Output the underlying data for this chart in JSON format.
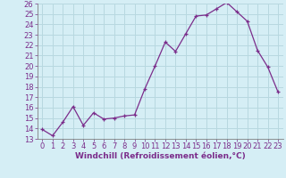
{
  "x": [
    0,
    1,
    2,
    3,
    4,
    5,
    6,
    7,
    8,
    9,
    10,
    11,
    12,
    13,
    14,
    15,
    16,
    17,
    18,
    19,
    20,
    21,
    22,
    23
  ],
  "y": [
    13.9,
    13.3,
    14.6,
    16.1,
    14.3,
    15.5,
    14.9,
    15.0,
    15.2,
    15.3,
    17.8,
    20.0,
    22.3,
    21.4,
    23.1,
    24.8,
    24.9,
    25.5,
    26.1,
    25.2,
    24.3,
    21.5,
    19.9,
    17.5
  ],
  "line_color": "#7b2d8b",
  "marker": "+",
  "marker_color": "#7b2d8b",
  "background_color": "#d5eef5",
  "grid_color": "#b8d8e0",
  "xlabel": "Windchill (Refroidissement éolien,°C)",
  "ylim": [
    13,
    26
  ],
  "xlim_min": -0.5,
  "xlim_max": 23.5,
  "yticks": [
    13,
    14,
    15,
    16,
    17,
    18,
    19,
    20,
    21,
    22,
    23,
    24,
    25,
    26
  ],
  "xticks": [
    0,
    1,
    2,
    3,
    4,
    5,
    6,
    7,
    8,
    9,
    10,
    11,
    12,
    13,
    14,
    15,
    16,
    17,
    18,
    19,
    20,
    21,
    22,
    23
  ],
  "axis_fontsize": 6.5,
  "tick_fontsize": 6.0,
  "line_width": 0.9,
  "marker_size": 3.5
}
